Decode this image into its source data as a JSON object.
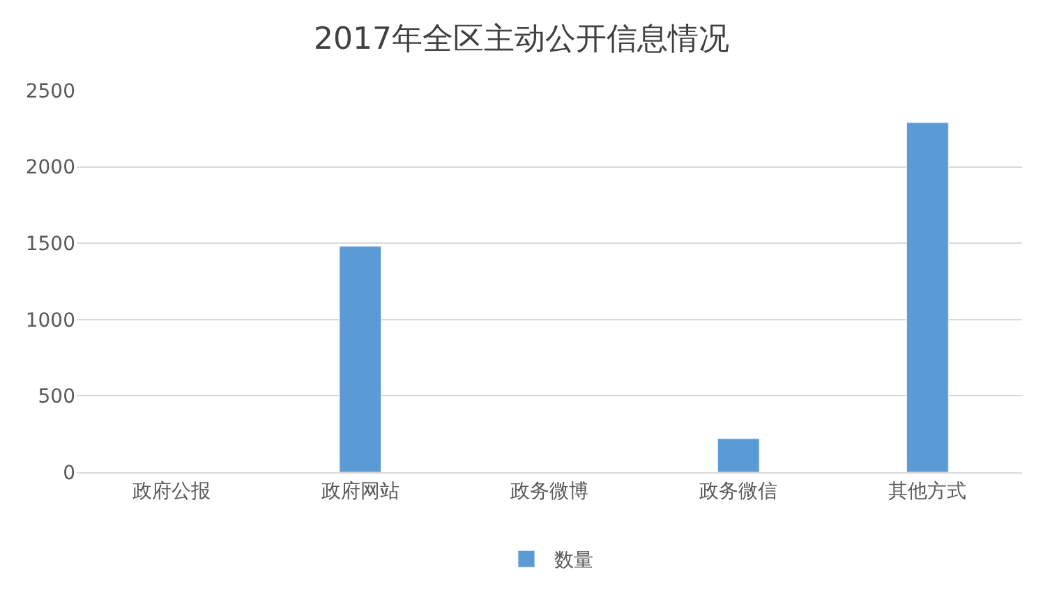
{
  "chart_data": {
    "type": "bar",
    "title": "2017年全区主动公开信息情况",
    "categories": [
      "政府公报",
      "政府网站",
      "政务微博",
      "政务微信",
      "其他方式"
    ],
    "series": [
      {
        "name": "数量",
        "color": "#5b9bd5",
        "values": [
          null,
          1480,
          null,
          220,
          2290
        ]
      }
    ],
    "ylim": [
      0,
      2500
    ],
    "yticks": [
      0,
      500,
      1000,
      1500,
      2000,
      2500
    ],
    "grid": "y",
    "legend": "bottom"
  }
}
